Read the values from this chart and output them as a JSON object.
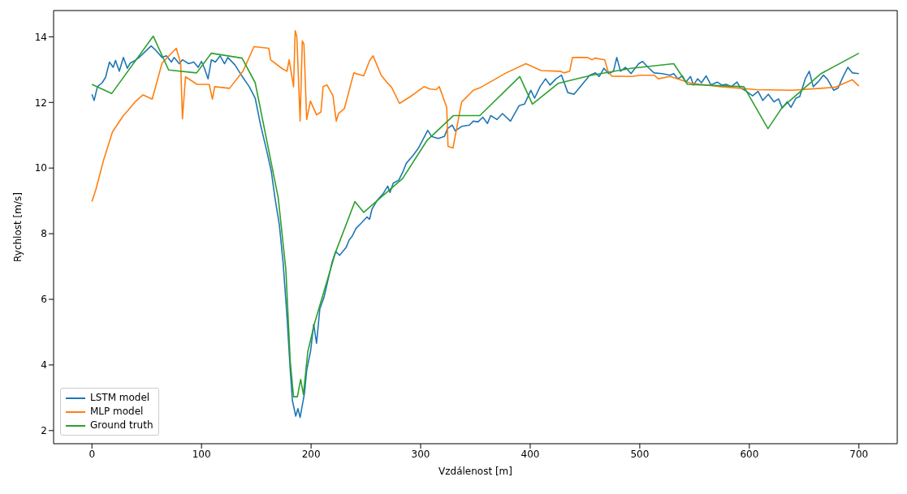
{
  "chart_data": {
    "type": "line",
    "xlabel": "Vzdálenost [m]",
    "ylabel": "Rychlost [m/s]",
    "xlim": [
      -35,
      735
    ],
    "ylim": [
      1.6,
      14.8
    ],
    "xticks": [
      0,
      100,
      200,
      300,
      400,
      500,
      600,
      700
    ],
    "yticks": [
      2,
      4,
      6,
      8,
      10,
      12,
      14
    ],
    "grid": false,
    "legend": "bottom left",
    "line_style": "solid",
    "series": [
      {
        "name": "LSTM model",
        "color": "#1f77b4",
        "x": [
          0,
          2,
          5,
          9.3,
          12.4,
          16,
          19.4,
          21.5,
          25,
          28.7,
          32.3,
          35,
          39.5,
          43,
          48,
          54,
          58,
          64,
          68,
          72.5,
          75,
          79.7,
          82.6,
          88.3,
          93,
          97,
          100,
          102.7,
          106,
          109,
          112.7,
          117,
          121,
          124,
          130.6,
          136.4,
          143.6,
          149,
          154,
          159,
          163.7,
          167,
          171,
          174.5,
          178,
          181,
          183,
          186,
          188,
          190,
          194,
          196,
          199.6,
          202.4,
          205,
          208,
          211.8,
          219,
          222.5,
          226,
          232,
          234.8,
          237.6,
          241,
          246,
          251,
          253.4,
          255.6,
          260.6,
          265.6,
          270,
          272,
          275,
          280,
          283.6,
          287,
          293,
          298,
          306.5,
          310,
          316,
          321.6,
          324.5,
          328.8,
          331.6,
          337.4,
          344.5,
          348,
          352.5,
          356.8,
          361,
          364,
          369.7,
          374.7,
          382,
          389.8,
          394.8,
          400.6,
          404,
          409,
          414,
          418,
          423.5,
          428.6,
          434.3,
          440,
          448.7,
          454.4,
          459.5,
          463,
          467.3,
          471.6,
          476,
          479,
          482.4,
          487,
          492,
          499,
          502.6,
          507.5,
          513,
          520.5,
          527.6,
          531,
          534.8,
          539,
          542,
          546.3,
          549,
          552.8,
          556.3,
          560.6,
          565,
          570.7,
          575,
          579,
          583.6,
          588.7,
          592,
          596,
          603,
          608,
          612.3,
          617.3,
          622.4,
          626.7,
          630,
          634.6,
          638,
          642.5,
          646,
          651,
          654.7,
          658.3,
          662.6,
          667.6,
          671,
          677,
          681,
          685.6,
          690,
          694,
          700
        ],
        "values": [
          12.25,
          12.06,
          12.48,
          12.6,
          12.76,
          13.23,
          13.07,
          13.28,
          12.95,
          13.37,
          13.04,
          13.2,
          13.28,
          13.37,
          13.53,
          13.72,
          13.6,
          13.37,
          13.42,
          13.23,
          13.37,
          13.18,
          13.3,
          13.18,
          13.23,
          13.07,
          13.25,
          13.04,
          12.72,
          13.3,
          13.23,
          13.42,
          13.18,
          13.37,
          13.14,
          12.83,
          12.48,
          12.13,
          11.3,
          10.6,
          9.9,
          9.1,
          8.28,
          7.11,
          5.48,
          3.84,
          2.91,
          2.44,
          2.67,
          2.4,
          3.14,
          3.84,
          4.43,
          5.24,
          4.66,
          5.71,
          6.06,
          7.11,
          7.46,
          7.34,
          7.58,
          7.81,
          7.93,
          8.16,
          8.33,
          8.51,
          8.44,
          8.75,
          9.03,
          9.21,
          9.45,
          9.26,
          9.54,
          9.63,
          9.87,
          10.15,
          10.38,
          10.61,
          11.15,
          10.96,
          10.9,
          10.96,
          11.2,
          11.31,
          11.13,
          11.27,
          11.31,
          11.43,
          11.41,
          11.55,
          11.36,
          11.6,
          11.48,
          11.66,
          11.43,
          11.9,
          11.95,
          12.37,
          12.13,
          12.48,
          12.72,
          12.53,
          12.72,
          12.83,
          12.3,
          12.25,
          12.6,
          12.83,
          12.9,
          12.79,
          13.04,
          12.88,
          12.95,
          13.37,
          12.95,
          13.07,
          12.88,
          13.18,
          13.25,
          13.07,
          12.9,
          12.88,
          12.83,
          12.88,
          12.72,
          12.81,
          12.62,
          12.79,
          12.53,
          12.72,
          12.6,
          12.81,
          12.53,
          12.62,
          12.53,
          12.55,
          12.48,
          12.62,
          12.44,
          12.37,
          12.2,
          12.34,
          12.06,
          12.25,
          12.02,
          12.11,
          11.83,
          12.02,
          11.85,
          12.13,
          12.18,
          12.72,
          12.95,
          12.48,
          12.62,
          12.83,
          12.72,
          12.37,
          12.44,
          12.79,
          13.07,
          12.9,
          12.88
        ]
      },
      {
        "name": "MLP model",
        "color": "#ff7f0e",
        "x": [
          0,
          3.6,
          10.8,
          18.7,
          28.7,
          33,
          39.5,
          46.7,
          55,
          64,
          77,
          81,
          82.6,
          85.4,
          96,
          107,
          110,
          112,
          125.6,
          137.8,
          147.9,
          161.5,
          163,
          174,
          178,
          180,
          184,
          185.5,
          187,
          190,
          192,
          193.5,
          196,
          199.4,
          205,
          209,
          211,
          214.6,
          220,
          222,
          223,
          225,
          230.4,
          239,
          248,
          253.5,
          256.6,
          264,
          269,
          273.5,
          280.7,
          290.7,
          303,
          308.5,
          314,
          317,
          323.8,
          325,
          329.5,
          337.4,
          348,
          355,
          378,
          396,
          410,
          427,
          431,
          436,
          438.6,
          452,
          456.6,
          459,
          468,
          471,
          474.5,
          493,
          500,
          513,
          517,
          527.6,
          547,
          574,
          606.6,
          639,
          678,
          694,
          700
        ],
        "values": [
          8.98,
          9.35,
          10.26,
          11.1,
          11.6,
          11.76,
          12.02,
          12.23,
          12.1,
          13.2,
          13.65,
          13.18,
          11.5,
          12.78,
          12.55,
          12.55,
          12.1,
          12.48,
          12.43,
          12.95,
          13.7,
          13.65,
          13.3,
          13.02,
          12.95,
          13.3,
          12.48,
          14.19,
          14.0,
          11.43,
          13.88,
          13.77,
          11.48,
          12.04,
          11.62,
          11.71,
          12.48,
          12.53,
          12.2,
          11.67,
          11.43,
          11.66,
          11.81,
          12.9,
          12.81,
          13.28,
          13.42,
          12.83,
          12.62,
          12.46,
          11.97,
          12.18,
          12.48,
          12.41,
          12.39,
          12.48,
          11.85,
          10.66,
          10.61,
          12.01,
          12.37,
          12.46,
          12.9,
          13.18,
          12.97,
          12.95,
          12.9,
          12.95,
          13.37,
          13.37,
          13.3,
          13.35,
          13.3,
          12.95,
          12.8,
          12.79,
          12.83,
          12.83,
          12.72,
          12.79,
          12.58,
          12.48,
          12.39,
          12.37,
          12.46,
          12.69,
          12.5
        ]
      },
      {
        "name": "Ground truth",
        "color": "#2ca02c",
        "x": [
          0,
          18,
          56,
          70,
          95.5,
          109,
          137,
          149,
          170,
          177,
          181,
          184,
          187.5,
          190.5,
          193,
          197,
          203,
          222.5,
          240,
          248,
          283.5,
          306,
          330,
          354,
          390.5,
          402,
          425.5,
          456,
          492,
          531,
          543.5,
          595,
          617,
          630,
          665.5,
          700
        ],
        "values": [
          12.55,
          12.27,
          14.02,
          12.99,
          12.9,
          13.5,
          13.35,
          12.6,
          9.1,
          6.9,
          4.1,
          3.03,
          3.03,
          3.56,
          3.1,
          4.4,
          5.25,
          7.45,
          8.98,
          8.65,
          9.68,
          10.85,
          11.6,
          11.6,
          12.79,
          11.95,
          12.58,
          12.83,
          13.04,
          13.18,
          12.55,
          12.48,
          11.2,
          11.85,
          12.88,
          13.5
        ]
      }
    ]
  }
}
